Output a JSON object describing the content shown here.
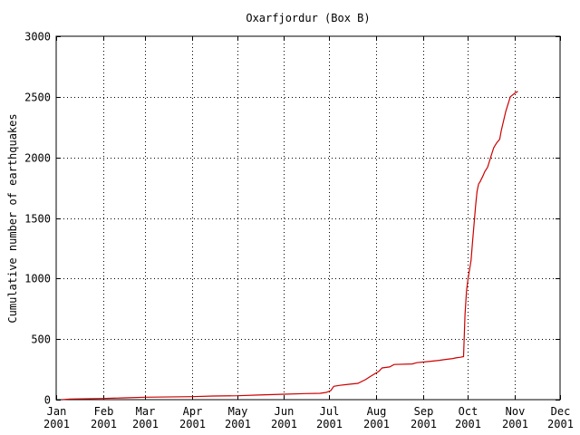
{
  "chart_data": {
    "type": "line",
    "title": "Oxarfjordur (Box B)",
    "xlabel": "",
    "ylabel": "Cumulative number of earthquakes",
    "ylim": [
      0,
      3000
    ],
    "yticks": [
      0,
      500,
      1000,
      1500,
      2000,
      2500,
      3000
    ],
    "xlim": [
      "2001-01-01",
      "2001-12-01"
    ],
    "xticks": [
      {
        "date": "2001-01-01",
        "month": "Jan",
        "year": "2001"
      },
      {
        "date": "2001-02-01",
        "month": "Feb",
        "year": "2001"
      },
      {
        "date": "2001-03-01",
        "month": "Mar",
        "year": "2001"
      },
      {
        "date": "2001-04-01",
        "month": "Apr",
        "year": "2001"
      },
      {
        "date": "2001-05-01",
        "month": "May",
        "year": "2001"
      },
      {
        "date": "2001-06-01",
        "month": "Jun",
        "year": "2001"
      },
      {
        "date": "2001-07-01",
        "month": "Jul",
        "year": "2001"
      },
      {
        "date": "2001-08-01",
        "month": "Aug",
        "year": "2001"
      },
      {
        "date": "2001-09-01",
        "month": "Sep",
        "year": "2001"
      },
      {
        "date": "2001-10-01",
        "month": "Oct",
        "year": "2001"
      },
      {
        "date": "2001-11-01",
        "month": "Nov",
        "year": "2001"
      },
      {
        "date": "2001-12-01",
        "month": "Dec",
        "year": "2001"
      }
    ],
    "grid": true,
    "series": [
      {
        "color": "#cc0000",
        "points": [
          [
            "2001-01-05",
            0
          ],
          [
            "2001-01-10",
            5
          ],
          [
            "2001-02-01",
            10
          ],
          [
            "2001-02-15",
            15
          ],
          [
            "2001-03-01",
            20
          ],
          [
            "2001-04-01",
            25
          ],
          [
            "2001-04-15",
            30
          ],
          [
            "2001-05-01",
            32
          ],
          [
            "2001-05-15",
            38
          ],
          [
            "2001-06-01",
            45
          ],
          [
            "2001-06-15",
            50
          ],
          [
            "2001-06-25",
            52
          ],
          [
            "2001-06-29",
            60
          ],
          [
            "2001-07-02",
            75
          ],
          [
            "2001-07-04",
            110
          ],
          [
            "2001-07-08",
            118
          ],
          [
            "2001-07-15",
            128
          ],
          [
            "2001-07-20",
            135
          ],
          [
            "2001-07-25",
            165
          ],
          [
            "2001-07-28",
            190
          ],
          [
            "2001-08-03",
            235
          ],
          [
            "2001-08-05",
            262
          ],
          [
            "2001-08-10",
            270
          ],
          [
            "2001-08-13",
            290
          ],
          [
            "2001-08-25",
            295
          ],
          [
            "2001-08-28",
            305
          ],
          [
            "2001-09-05",
            315
          ],
          [
            "2001-09-12",
            325
          ],
          [
            "2001-09-15",
            330
          ],
          [
            "2001-09-21",
            340
          ],
          [
            "2001-09-23",
            345
          ],
          [
            "2001-09-26",
            350
          ],
          [
            "2001-09-28",
            355
          ],
          [
            "2001-09-29",
            700
          ],
          [
            "2001-09-30",
            900
          ],
          [
            "2001-10-01",
            1000
          ],
          [
            "2001-10-03",
            1150
          ],
          [
            "2001-10-04",
            1300
          ],
          [
            "2001-10-05",
            1450
          ],
          [
            "2001-10-06",
            1600
          ],
          [
            "2001-10-07",
            1720
          ],
          [
            "2001-10-08",
            1780
          ],
          [
            "2001-10-09",
            1800
          ],
          [
            "2001-10-11",
            1850
          ],
          [
            "2001-10-12",
            1880
          ],
          [
            "2001-10-14",
            1920
          ],
          [
            "2001-10-16",
            2000
          ],
          [
            "2001-10-18",
            2080
          ],
          [
            "2001-10-20",
            2120
          ],
          [
            "2001-10-22",
            2150
          ],
          [
            "2001-10-23",
            2220
          ],
          [
            "2001-10-26",
            2380
          ],
          [
            "2001-10-29",
            2500
          ],
          [
            "2001-11-01",
            2530
          ],
          [
            "2001-11-03",
            2545
          ]
        ]
      }
    ]
  }
}
